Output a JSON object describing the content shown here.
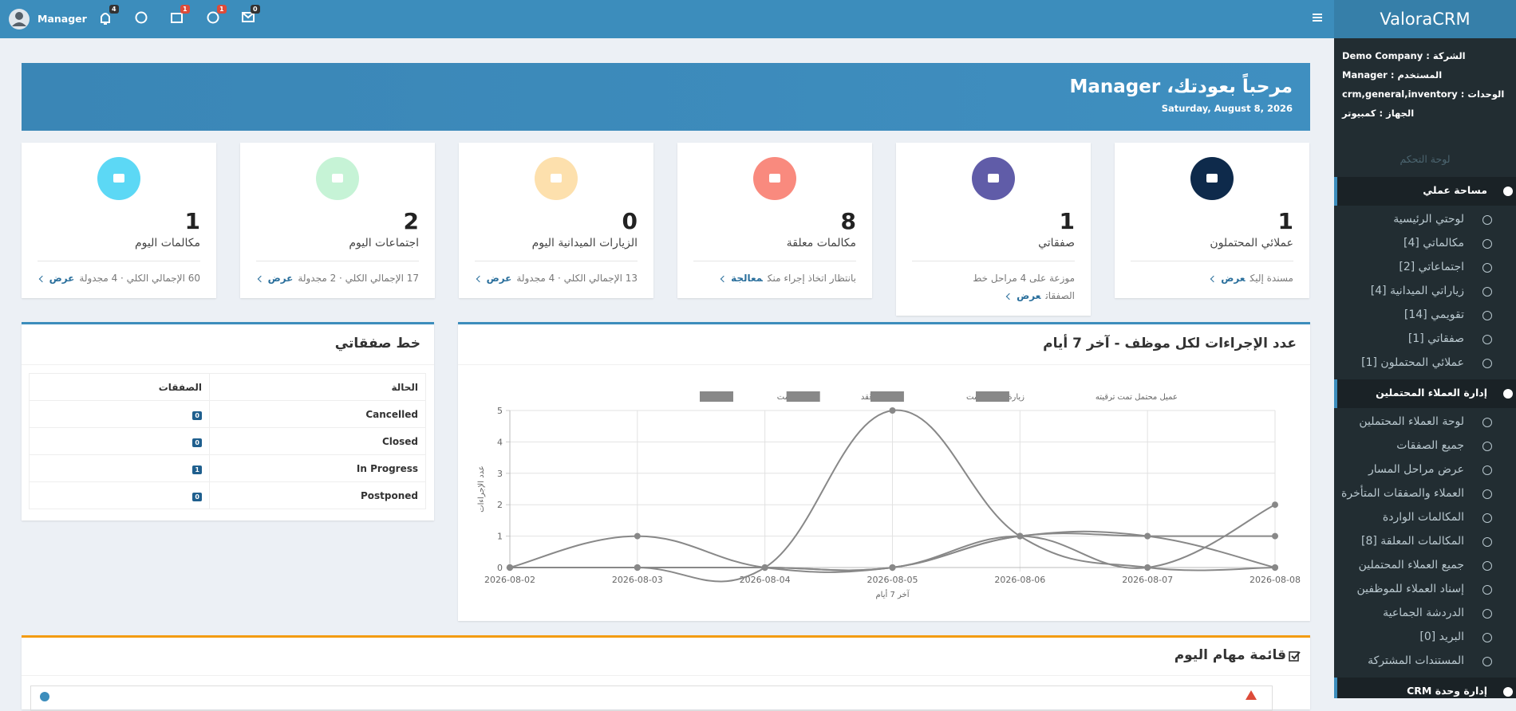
{
  "topbar": {
    "user": "Manager",
    "badges": [
      4,
      1,
      1,
      0
    ]
  },
  "sidebar": {
    "brand": "ValoraCRM",
    "info": [
      "الشركة : Demo Company",
      "المستخدم : Manager",
      "الوحدات : crm,general,inventory",
      "الجهاز : كمبيوتر"
    ],
    "heading": "لوحة التحكم",
    "sections": [
      {
        "title": "مساحة عملي",
        "items": [
          "لوحتي الرئيسية",
          "مكالماتي [4]",
          "اجتماعاتي [2]",
          "زياراتي الميدانية [4]",
          "تقويمي [14]",
          "صفقاتي [1]",
          "عملائي المحتملون [1]"
        ]
      },
      {
        "title": "إدارة العملاء المحتملين",
        "items": [
          "لوحة العملاء المحتملين",
          "جميع الصفقات",
          "عرض مراحل المسار",
          "العملاء والصفقات المتأخرة",
          "المكالمات الواردة",
          "المكالمات المعلقة [8]",
          "جميع العملاء المحتملين",
          "إسناد العملاء للموظفين",
          "الدردشة الجماعية",
          "البريد [0]",
          "المستندات المشتركة"
        ]
      },
      {
        "title": "إدارة وحدة CRM"
      }
    ]
  },
  "welcome": {
    "title": "مرحباً بعودتك، Manager",
    "date": "Saturday, August 8, 2026"
  },
  "cards": [
    {
      "value": 1,
      "label": "عملائي المحتملون",
      "note": "مسندة إليك",
      "link": "عرض",
      "color": "#0e2a4b"
    },
    {
      "value": 1,
      "label": "صفقاتي",
      "note": "موزعة على 4 مراحل خط الصفقات",
      "link": "عرض",
      "color": "#605ca8"
    },
    {
      "value": 8,
      "label": "مكالمات معلقة",
      "note": "بانتظار اتخاذ إجراء منك",
      "link": "معالجة",
      "color": "#f98a7e"
    },
    {
      "value": 0,
      "label": "الزيارات الميدانية اليوم",
      "note": "13 الإجمالي الكلي · 4 مجدولة",
      "link": "عرض",
      "color": "#fde0ad"
    },
    {
      "value": 2,
      "label": "اجتماعات اليوم",
      "note": "17 الإجمالي الكلي · 2 مجدولة",
      "link": "عرض",
      "color": "#c6f3d6"
    },
    {
      "value": 1,
      "label": "مكالمات اليوم",
      "note": "60 الإجمالي الكلي · 4 مجدولة",
      "link": "عرض",
      "color": "#5cd8f5"
    }
  ],
  "pipeline": {
    "title": "خط صفقاتي",
    "headers": [
      "الحالة",
      "الصفقات"
    ],
    "rows": [
      [
        "Cancelled",
        0
      ],
      [
        "Closed",
        0
      ],
      [
        "In Progress",
        1
      ],
      [
        "Postponed",
        0
      ]
    ]
  },
  "chart_data": {
    "type": "line",
    "title": "عدد الإجراءات لكل موظف - آخر 7 أيام",
    "x_label": "آخر 7 أيام",
    "y_label": "عدد الإجراءات",
    "categories": [
      "2026-08-02",
      "2026-08-03",
      "2026-08-04",
      "2026-08-05",
      "2026-08-06",
      "2026-08-07",
      "2026-08-08"
    ],
    "series": [
      {
        "name": "مكالمة تمت",
        "color": "#888888",
        "values": [
          0,
          1,
          0,
          0,
          1,
          1,
          1
        ]
      },
      {
        "name": "اجتماع عُقد",
        "color": "#888888",
        "values": [
          0,
          0,
          0,
          5,
          1,
          0,
          0
        ]
      },
      {
        "name": "زيارة ميدانية تمت",
        "color": "#888888",
        "values": [
          0,
          0,
          0,
          0,
          1,
          0,
          2
        ]
      },
      {
        "name": "عميل محتمل تمت ترقيته",
        "color": "#888888",
        "values": [
          0,
          0,
          0,
          0,
          1,
          1,
          0
        ]
      }
    ],
    "ylim": [
      0,
      5
    ],
    "yticks": [
      0,
      1,
      2,
      3,
      4,
      5
    ],
    "grid": true
  },
  "tasks": {
    "title": "قائمة مهام اليوم"
  }
}
